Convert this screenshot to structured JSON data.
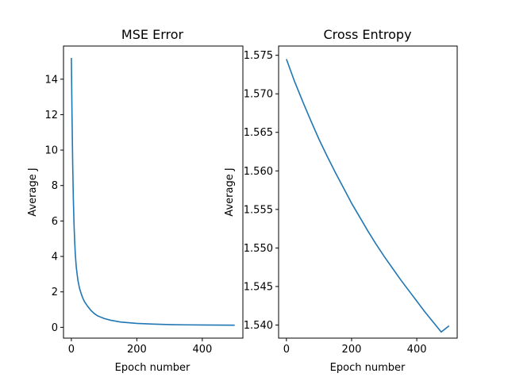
{
  "chart_data": [
    {
      "type": "line",
      "title": "MSE Error",
      "xlabel": "Epoch number",
      "ylabel": "Average J",
      "xlim": [
        -24,
        524
      ],
      "ylim": [
        -0.61,
        15.87
      ],
      "xticks": [
        0,
        200,
        400
      ],
      "yticks": [
        0,
        2,
        4,
        6,
        8,
        10,
        12,
        14
      ],
      "ytick_labels": [
        "0",
        "2",
        "4",
        "6",
        "8",
        "10",
        "12",
        "14"
      ],
      "color": "#1f77b4",
      "grid": false,
      "series": [
        {
          "x": [
            0,
            2,
            4,
            6,
            8,
            10,
            12,
            15,
            20,
            25,
            30,
            35,
            40,
            50,
            60,
            70,
            80,
            100,
            120,
            150,
            200,
            250,
            300,
            350,
            400,
            450,
            499
          ],
          "y": [
            15.2,
            12.0,
            9.3,
            7.3,
            5.9,
            4.9,
            4.15,
            3.4,
            2.65,
            2.2,
            1.9,
            1.65,
            1.45,
            1.18,
            0.95,
            0.78,
            0.65,
            0.5,
            0.4,
            0.3,
            0.22,
            0.18,
            0.155,
            0.14,
            0.13,
            0.125,
            0.12
          ]
        }
      ]
    },
    {
      "type": "line",
      "title": "Cross Entropy",
      "xlabel": "Epoch number",
      "ylabel": "Average J",
      "xlim": [
        -24,
        524
      ],
      "ylim": [
        1.5383,
        1.5762
      ],
      "xticks": [
        0,
        200,
        400
      ],
      "yticks": [
        1.54,
        1.545,
        1.55,
        1.555,
        1.56,
        1.565,
        1.57,
        1.575
      ],
      "ytick_labels": [
        "1.540",
        "1.545",
        "1.550",
        "1.555",
        "1.560",
        "1.565",
        "1.570",
        "1.575"
      ],
      "color": "#1f77b4",
      "grid": false,
      "series": [
        {
          "x": [
            0,
            25,
            50,
            75,
            100,
            125,
            150,
            175,
            200,
            225,
            250,
            275,
            300,
            325,
            350,
            375,
            400,
            425,
            450,
            475,
            499
          ],
          "y": [
            1.5745,
            1.5716,
            1.569,
            1.5665,
            1.5641,
            1.5619,
            1.5598,
            1.5578,
            1.5558,
            1.554,
            1.5522,
            1.5505,
            1.5489,
            1.5474,
            1.5459,
            1.5445,
            1.5431,
            1.5417,
            1.5404,
            1.5391,
            1.5399
          ]
        }
      ]
    }
  ]
}
